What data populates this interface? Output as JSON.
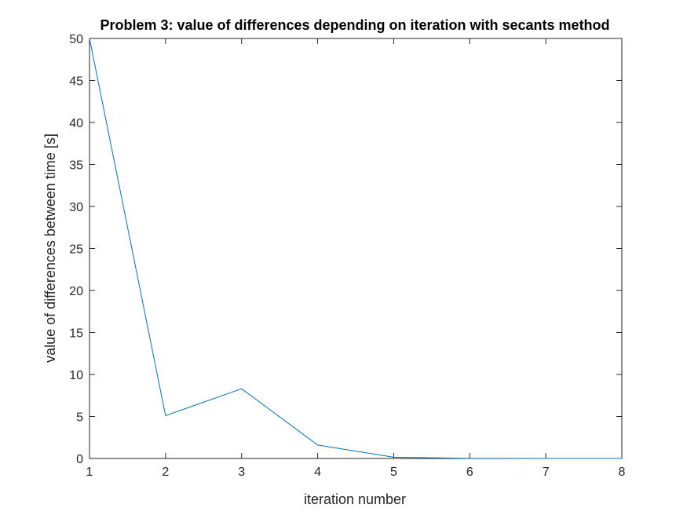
{
  "chart_data": {
    "type": "line",
    "title": "Problem 3: value of differences depending on iteration with secants method",
    "xlabel": "iteration number",
    "ylabel": "value of differences between time [s]",
    "xlim": [
      1,
      8
    ],
    "ylim": [
      0,
      50
    ],
    "xticks": [
      1,
      2,
      3,
      4,
      5,
      6,
      7,
      8
    ],
    "yticks": [
      0,
      5,
      10,
      15,
      20,
      25,
      30,
      35,
      40,
      45,
      50
    ],
    "grid": false,
    "legend": "none",
    "series": [
      {
        "x": [
          1,
          2,
          3,
          4,
          5,
          6,
          7,
          8
        ],
        "values": [
          50,
          5.1,
          8.3,
          1.6,
          0.15,
          0.01,
          0.0,
          0.0
        ],
        "color": "#0072BD"
      }
    ]
  }
}
